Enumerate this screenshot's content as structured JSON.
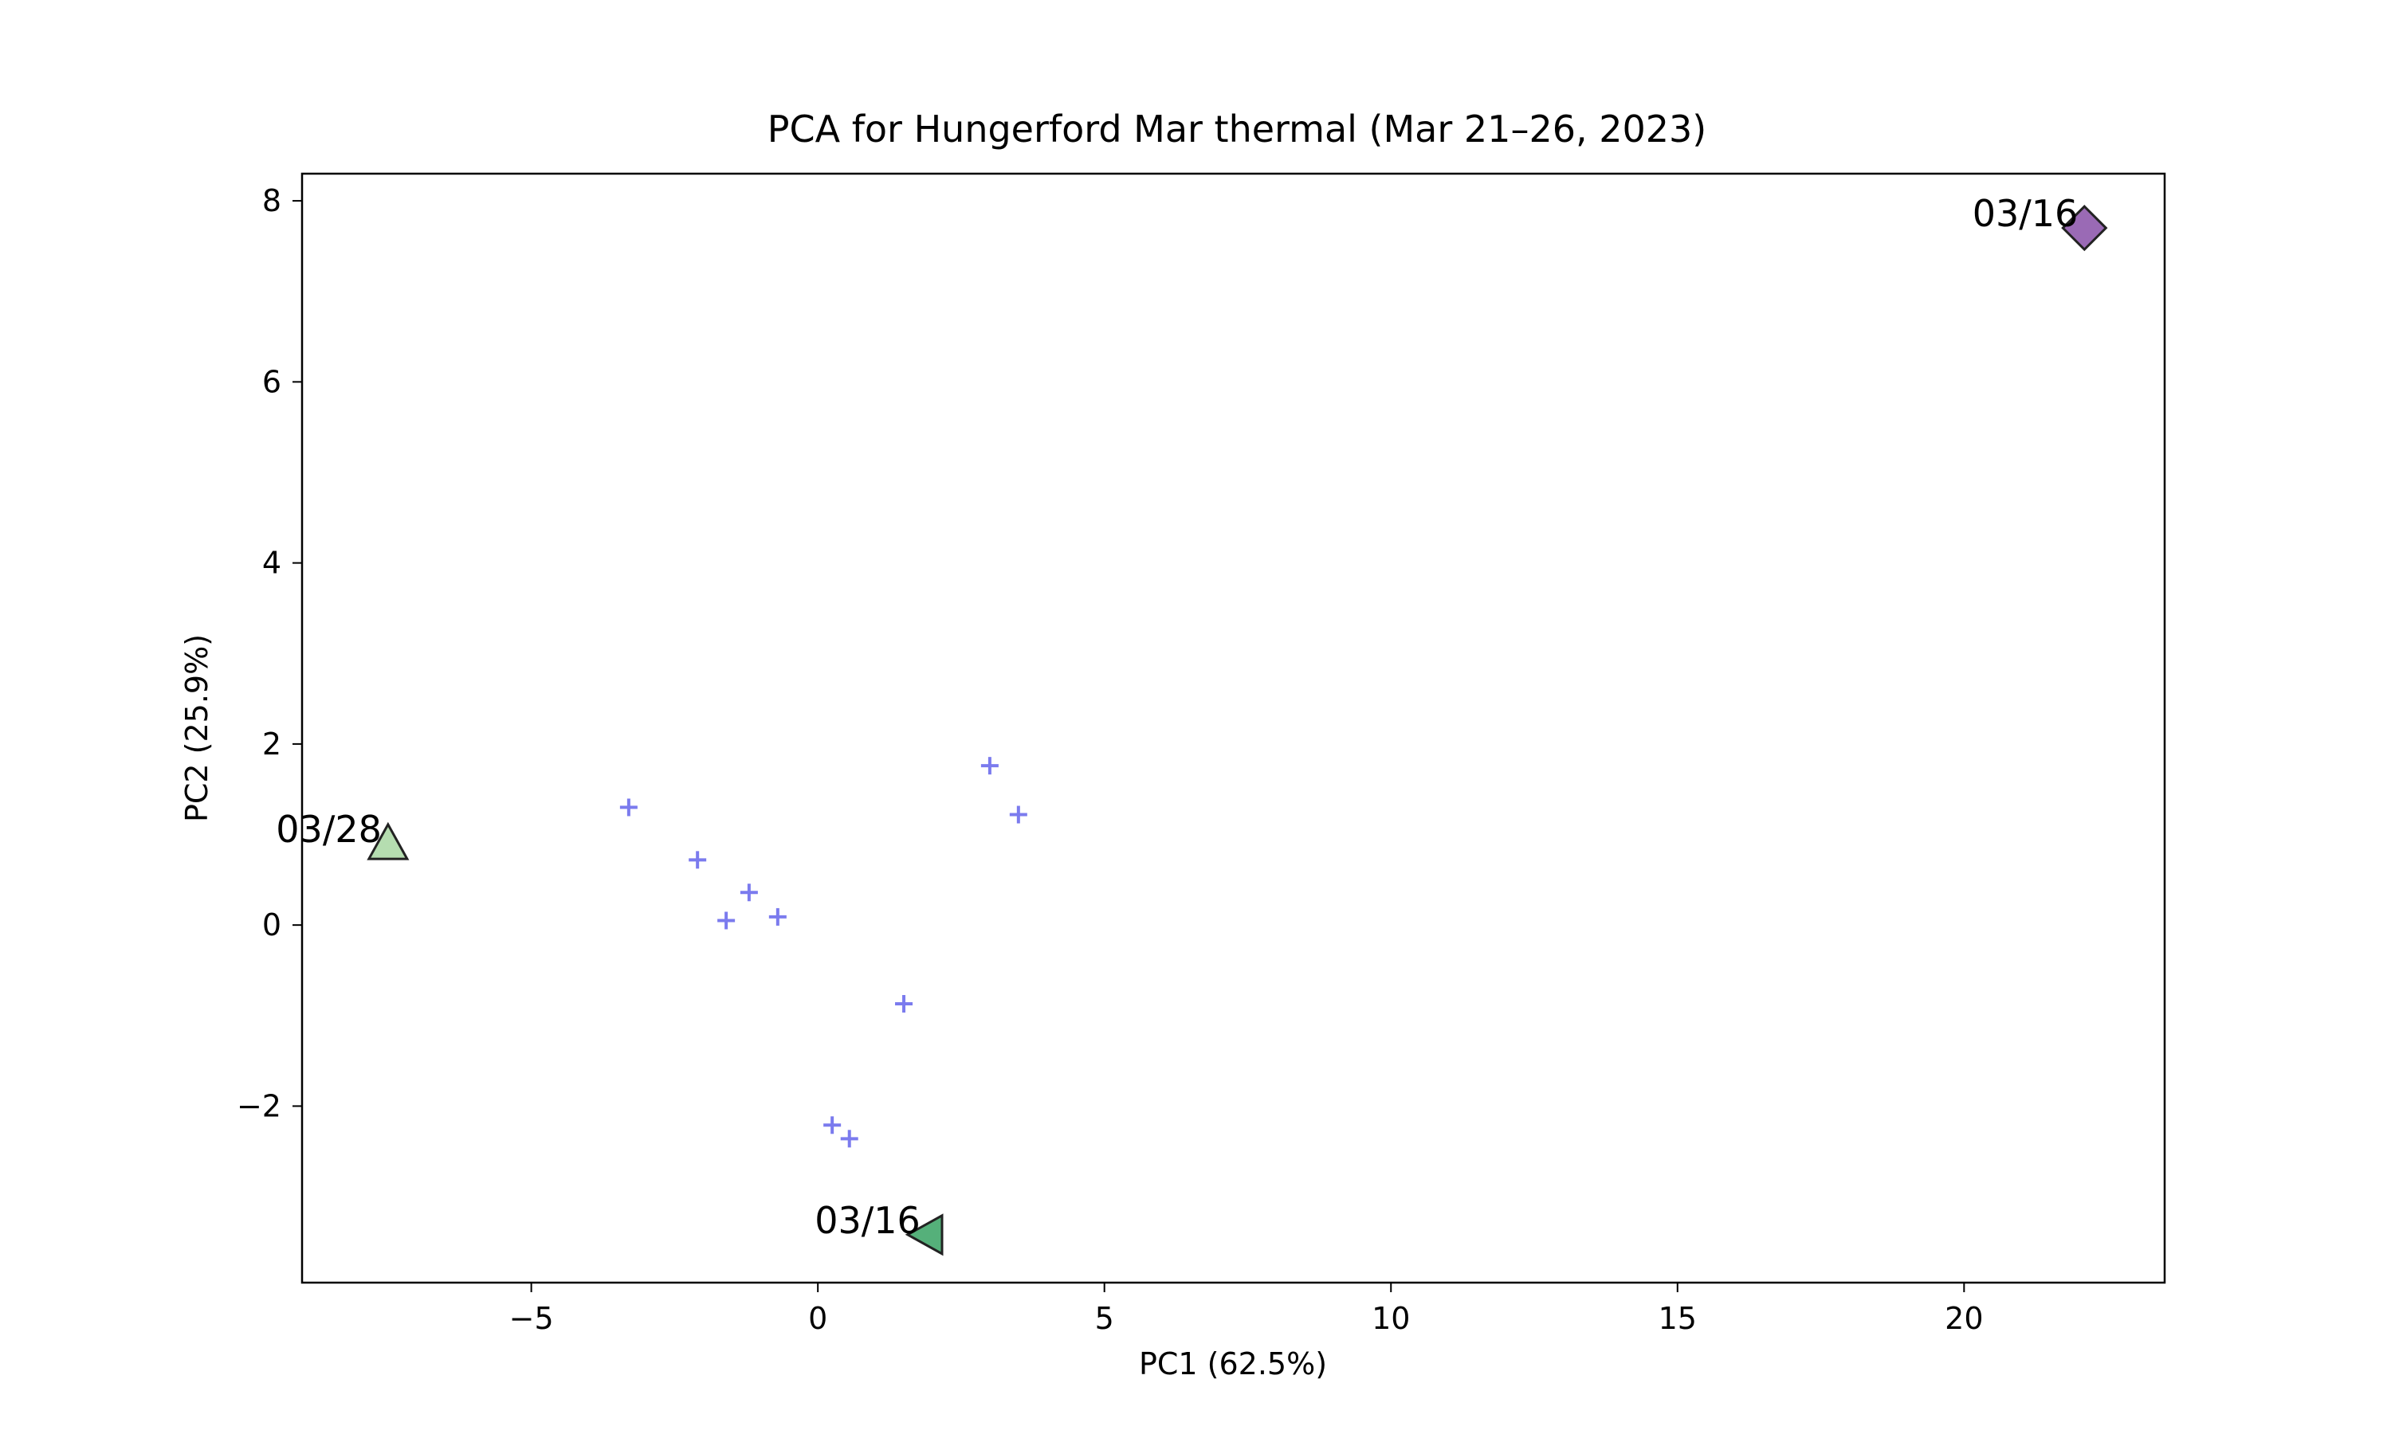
{
  "chart_data": {
    "type": "scatter",
    "title": "PCA for Hungerford Mar thermal (Mar 21–26, 2023)",
    "xlabel": "PC1 (62.5%)",
    "ylabel": "PC2 (25.9%)",
    "xlim": [
      -9.0,
      23.5
    ],
    "ylim": [
      -3.95,
      8.3
    ],
    "xticks": [
      -5,
      0,
      5,
      10,
      15,
      20
    ],
    "xtick_labels": [
      "−5",
      "0",
      "5",
      "10",
      "15",
      "20"
    ],
    "yticks": [
      -2,
      0,
      2,
      4,
      6,
      8
    ],
    "ytick_labels": [
      "−2",
      "0",
      "2",
      "4",
      "6",
      "8"
    ],
    "grid": false,
    "series": [
      {
        "marker": "plus",
        "color": "#7b7bee",
        "points": [
          {
            "x": -3.3,
            "y": 1.3
          },
          {
            "x": -2.1,
            "y": 0.72
          },
          {
            "x": -1.2,
            "y": 0.36
          },
          {
            "x": -1.6,
            "y": 0.05
          },
          {
            "x": -0.7,
            "y": 0.09
          },
          {
            "x": 1.5,
            "y": -0.87
          },
          {
            "x": 0.25,
            "y": -2.21
          },
          {
            "x": 0.55,
            "y": -2.36
          },
          {
            "x": 3.0,
            "y": 1.76
          },
          {
            "x": 3.5,
            "y": 1.22
          }
        ]
      },
      {
        "marker": "diamond",
        "color": "#9a6ab5",
        "points": [
          {
            "x": 22.1,
            "y": 7.7,
            "label": "03/16"
          }
        ]
      },
      {
        "marker": "triangle-up",
        "color": "#b5ddb0",
        "points": [
          {
            "x": -7.5,
            "y": 0.9,
            "label": "03/28"
          }
        ]
      },
      {
        "marker": "triangle-left",
        "color": "#55b07a",
        "points": [
          {
            "x": 1.9,
            "y": -3.42,
            "label": "03/16"
          }
        ]
      }
    ]
  }
}
